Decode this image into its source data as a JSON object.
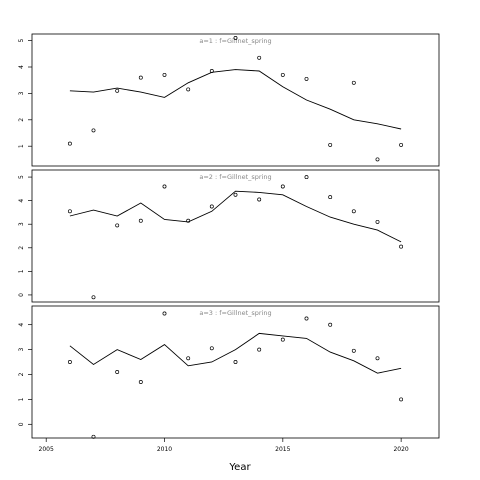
{
  "chart_data": {
    "type": "scatter",
    "xlabel": "Year",
    "xlim": [
      2004.4,
      2021.6
    ],
    "x_ticks": [
      2005,
      2010,
      2015,
      2020
    ],
    "colors": {
      "points": "#000000",
      "line": "#000000",
      "title": "#888888",
      "frame": "#000000"
    },
    "panels": [
      {
        "title": "a=1 : f=Gillnet_spring",
        "ylim": [
          0.25,
          5.25
        ],
        "y_ticks": [
          1,
          2,
          3,
          4,
          5
        ],
        "points": {
          "x": [
            2006,
            2007,
            2008,
            2009,
            2010,
            2011,
            2012,
            2013,
            2014,
            2015,
            2016,
            2017,
            2018,
            2019,
            2020
          ],
          "y": [
            1.1,
            1.6,
            3.1,
            3.6,
            3.7,
            3.15,
            3.85,
            5.1,
            4.35,
            3.7,
            3.55,
            1.05,
            3.4,
            0.5,
            1.05
          ]
        },
        "line": {
          "x": [
            2006,
            2007,
            2008,
            2009,
            2010,
            2011,
            2012,
            2013,
            2014,
            2015,
            2016,
            2017,
            2018,
            2019,
            2020
          ],
          "y": [
            3.1,
            3.05,
            3.2,
            3.05,
            2.85,
            3.4,
            3.8,
            3.9,
            3.85,
            3.25,
            2.75,
            2.4,
            2.0,
            1.85,
            1.65
          ]
        }
      },
      {
        "title": "a=2 : f=Gillnet_spring",
        "ylim": [
          -0.3,
          5.3
        ],
        "y_ticks": [
          0,
          1,
          2,
          3,
          4,
          5
        ],
        "points": {
          "x": [
            2006,
            2007,
            2008,
            2009,
            2010,
            2011,
            2012,
            2013,
            2014,
            2015,
            2016,
            2017,
            2018,
            2019,
            2020
          ],
          "y": [
            3.55,
            -0.1,
            2.95,
            3.15,
            4.6,
            3.15,
            3.75,
            4.25,
            4.05,
            4.6,
            5.0,
            4.15,
            3.55,
            3.1,
            2.05
          ]
        },
        "line": {
          "x": [
            2006,
            2007,
            2008,
            2009,
            2010,
            2011,
            2012,
            2013,
            2014,
            2015,
            2016,
            2017,
            2018,
            2019,
            2020
          ],
          "y": [
            3.35,
            3.6,
            3.35,
            3.9,
            3.2,
            3.1,
            3.55,
            4.4,
            4.35,
            4.25,
            3.75,
            3.3,
            3.0,
            2.75,
            2.25
          ]
        }
      },
      {
        "title": "a=3 : f=Gillnet_spring",
        "ylim": [
          -0.55,
          4.75
        ],
        "y_ticks": [
          0,
          1,
          2,
          3,
          4
        ],
        "points": {
          "x": [
            2006,
            2007,
            2008,
            2009,
            2010,
            2011,
            2012,
            2013,
            2014,
            2015,
            2016,
            2017,
            2018,
            2019,
            2020
          ],
          "y": [
            2.5,
            -0.5,
            2.1,
            1.7,
            4.45,
            2.65,
            3.05,
            2.5,
            3.0,
            3.4,
            4.25,
            4.0,
            2.95,
            2.65,
            1.0
          ]
        },
        "line": {
          "x": [
            2006,
            2007,
            2008,
            2009,
            2010,
            2011,
            2012,
            2013,
            2014,
            2015,
            2016,
            2017,
            2018,
            2019,
            2020
          ],
          "y": [
            3.15,
            2.4,
            3.0,
            2.6,
            3.2,
            2.35,
            2.5,
            3.0,
            3.65,
            3.55,
            3.45,
            2.9,
            2.55,
            2.05,
            2.25
          ]
        }
      }
    ]
  }
}
